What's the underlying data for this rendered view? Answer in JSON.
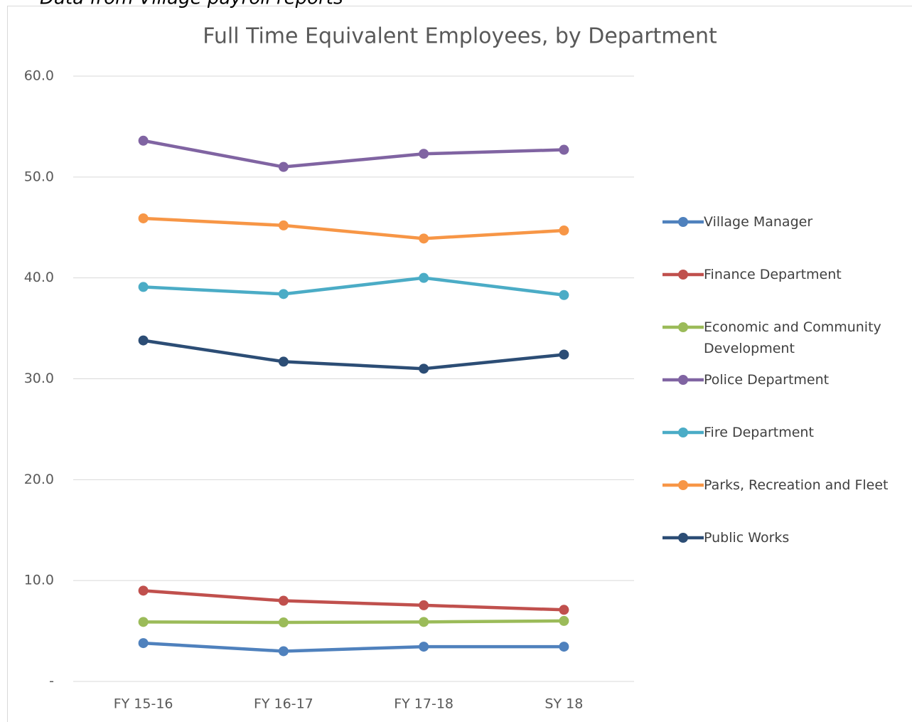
{
  "chart_data": {
    "type": "line",
    "note": "Data from Village payroll reports",
    "title": "Full Time Equivalent Employees, by Department",
    "categories": [
      "FY 15-16",
      "FY 16-17",
      "FY 17-18",
      "SY 18"
    ],
    "series": [
      {
        "name": "Village Manager",
        "color": "#4f81bd",
        "values": [
          3.8,
          3.0,
          3.45,
          3.45
        ]
      },
      {
        "name": "Finance Department",
        "color": "#c0504d",
        "values": [
          9.0,
          8.0,
          7.55,
          7.1
        ]
      },
      {
        "name": "Economic and Community Development",
        "color": "#9bbb59",
        "values": [
          5.9,
          5.85,
          5.9,
          6.0
        ]
      },
      {
        "name": "Police Department",
        "color": "#8064a2",
        "values": [
          53.6,
          51.0,
          52.3,
          52.7
        ]
      },
      {
        "name": "Fire Department",
        "color": "#4bacc6",
        "values": [
          39.1,
          38.4,
          40.0,
          38.3
        ]
      },
      {
        "name": "Parks, Recreation and Fleet",
        "color": "#f79646",
        "values": [
          45.9,
          45.2,
          43.9,
          44.7
        ]
      },
      {
        "name": "Public Works",
        "color": "#2c4d75",
        "values": [
          33.8,
          31.7,
          31.0,
          32.4
        ]
      }
    ],
    "ylim": [
      0,
      60
    ],
    "yticks": [
      {
        "value": 0,
        "label": "-"
      },
      {
        "value": 10,
        "label": "10.0"
      },
      {
        "value": 20,
        "label": "20.0"
      },
      {
        "value": 30,
        "label": "30.0"
      },
      {
        "value": 40,
        "label": "40.0"
      },
      {
        "value": 50,
        "label": "50.0"
      },
      {
        "value": 60,
        "label": "60.0"
      }
    ],
    "grid": true,
    "legend": "right"
  }
}
